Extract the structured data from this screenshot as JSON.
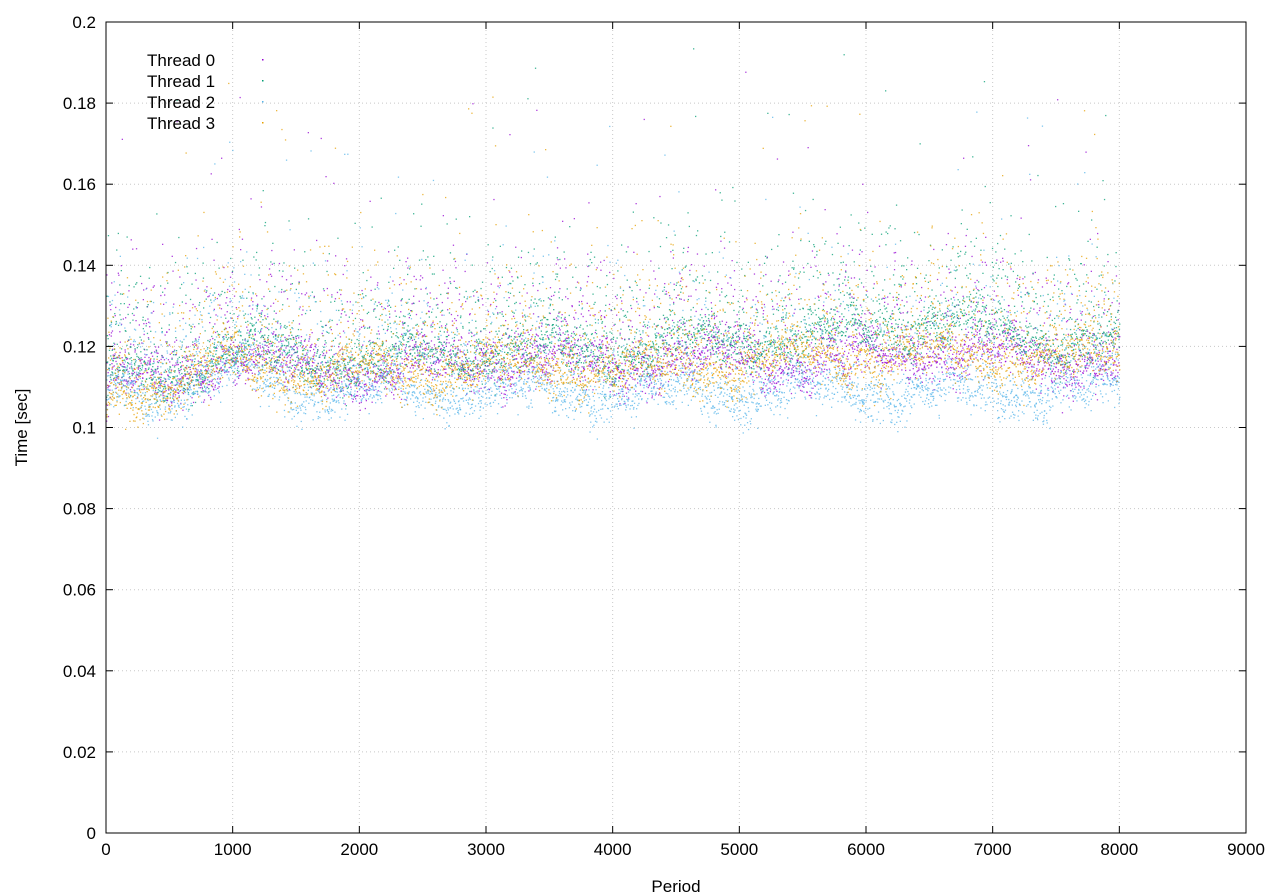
{
  "chart_data": {
    "type": "scatter",
    "title": "",
    "xlabel": "Period",
    "ylabel": "Time [sec]",
    "xlim": [
      0,
      9000
    ],
    "ylim": [
      0,
      0.2
    ],
    "x_ticks": [
      "0",
      "1000",
      "2000",
      "3000",
      "4000",
      "5000",
      "6000",
      "7000",
      "8000",
      "9000"
    ],
    "y_ticks": [
      "0",
      "0.02",
      "0.04",
      "0.06",
      "0.08",
      "0.1",
      "0.12",
      "0.14",
      "0.16",
      "0.18",
      "0.2"
    ],
    "grid": true,
    "legend_position": "top-left",
    "points_per_series": 8000,
    "series": [
      {
        "name": "Thread 0",
        "color": "#9400d3",
        "approx_profile": [
          [
            0,
            0.112
          ],
          [
            500,
            0.111
          ],
          [
            1000,
            0.118
          ],
          [
            1500,
            0.114
          ],
          [
            2000,
            0.113
          ],
          [
            2500,
            0.115
          ],
          [
            3000,
            0.116
          ],
          [
            3500,
            0.116
          ],
          [
            4000,
            0.115
          ],
          [
            4500,
            0.117
          ],
          [
            5000,
            0.117
          ],
          [
            5500,
            0.115
          ],
          [
            6000,
            0.117
          ],
          [
            6500,
            0.119
          ],
          [
            7000,
            0.118
          ],
          [
            7500,
            0.116
          ],
          [
            8000,
            0.117
          ]
        ]
      },
      {
        "name": "Thread 1",
        "color": "#009e73",
        "approx_profile": [
          [
            0,
            0.114
          ],
          [
            500,
            0.112
          ],
          [
            1000,
            0.119
          ],
          [
            1500,
            0.117
          ],
          [
            2000,
            0.116
          ],
          [
            2500,
            0.118
          ],
          [
            3000,
            0.119
          ],
          [
            3500,
            0.119
          ],
          [
            4000,
            0.118
          ],
          [
            4500,
            0.121
          ],
          [
            5000,
            0.121
          ],
          [
            5500,
            0.122
          ],
          [
            6000,
            0.124
          ],
          [
            6500,
            0.126
          ],
          [
            7000,
            0.124
          ],
          [
            7500,
            0.121
          ],
          [
            8000,
            0.12
          ]
        ]
      },
      {
        "name": "Thread 2",
        "color": "#56b4e9",
        "approx_profile": [
          [
            0,
            0.11
          ],
          [
            500,
            0.108
          ],
          [
            1000,
            0.114
          ],
          [
            1500,
            0.11
          ],
          [
            2000,
            0.109
          ],
          [
            2500,
            0.109
          ],
          [
            3000,
            0.109
          ],
          [
            3500,
            0.108
          ],
          [
            4000,
            0.108
          ],
          [
            4500,
            0.109
          ],
          [
            5000,
            0.109
          ],
          [
            5500,
            0.109
          ],
          [
            6000,
            0.109
          ],
          [
            6500,
            0.109
          ],
          [
            7000,
            0.109
          ],
          [
            7500,
            0.109
          ],
          [
            8000,
            0.109
          ]
        ]
      },
      {
        "name": "Thread 3",
        "color": "#e69f00",
        "approx_profile": [
          [
            0,
            0.109
          ],
          [
            500,
            0.11
          ],
          [
            1000,
            0.117
          ],
          [
            1500,
            0.113
          ],
          [
            2000,
            0.113
          ],
          [
            2500,
            0.114
          ],
          [
            3000,
            0.114
          ],
          [
            3500,
            0.115
          ],
          [
            4000,
            0.114
          ],
          [
            4500,
            0.115
          ],
          [
            5000,
            0.115
          ],
          [
            5500,
            0.118
          ],
          [
            6000,
            0.117
          ],
          [
            6500,
            0.118
          ],
          [
            7000,
            0.118
          ],
          [
            7500,
            0.116
          ],
          [
            8000,
            0.119
          ]
        ]
      }
    ]
  }
}
